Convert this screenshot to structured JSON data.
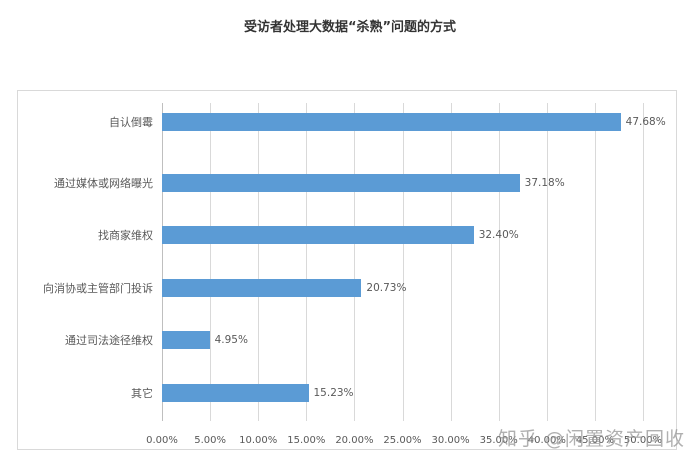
{
  "chart_data": {
    "type": "bar",
    "orientation": "horizontal",
    "title": "受访者处理大数据“杀熟”问题的方式",
    "categories": [
      "自认倒霉",
      "通过媒体或网络曝光",
      "找商家维权",
      "向消协或主管部门投诉",
      "通过司法途径维权",
      "其它"
    ],
    "values": [
      47.68,
      37.18,
      32.4,
      20.73,
      4.95,
      15.23
    ],
    "value_labels": [
      "47.68%",
      "37.18%",
      "32.40%",
      "20.73%",
      "4.95%",
      "15.23%"
    ],
    "xlabel": "",
    "ylabel": "",
    "xlim": [
      0,
      50
    ],
    "x_ticks": [
      "0.00%",
      "5.00%",
      "10.00%",
      "15.00%",
      "20.00%",
      "25.00%",
      "30.00%",
      "35.00%",
      "40.00%",
      "45.00%",
      "50.00%"
    ],
    "grid": true,
    "legend": "none",
    "bar_color": "#5b9bd5"
  },
  "watermark": "知乎 @闲置资产回收"
}
